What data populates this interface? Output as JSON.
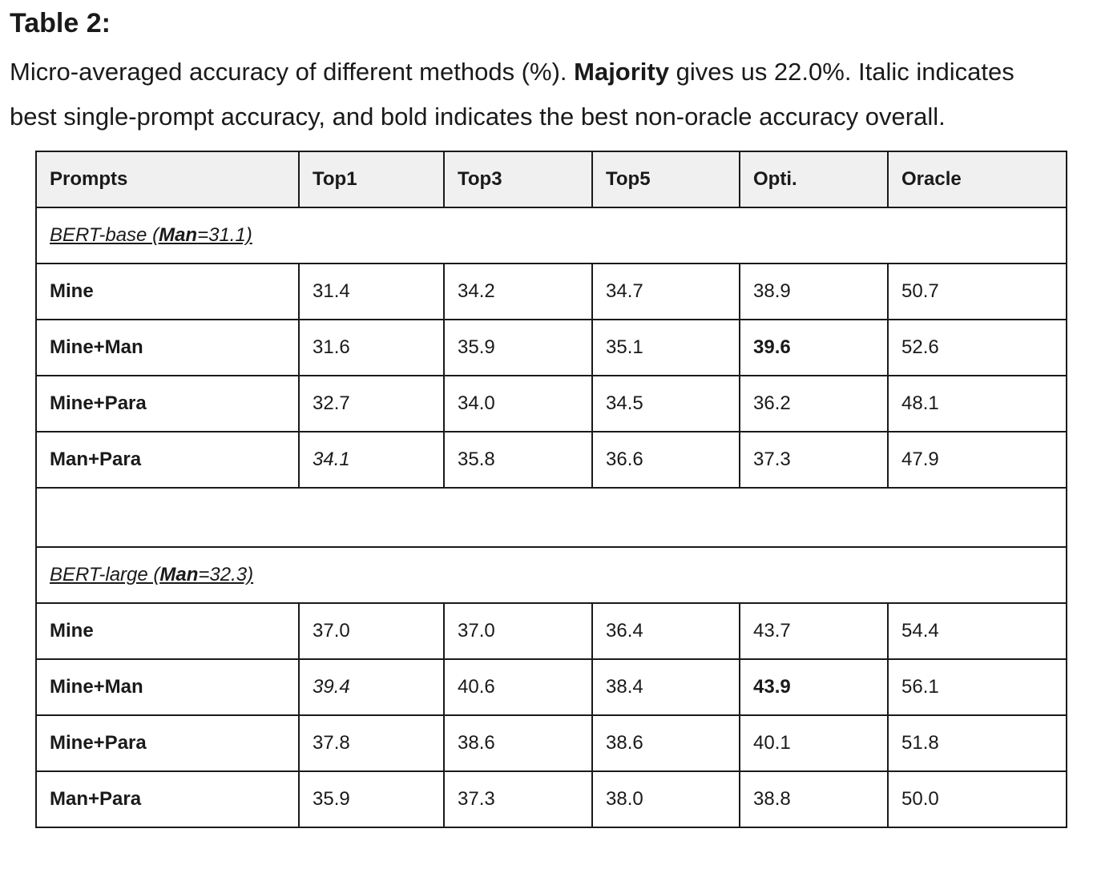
{
  "title": "Table 2:",
  "caption": {
    "part1": "Micro-averaged accuracy of different methods (%). ",
    "majority_label": "Majority",
    "part2": " gives us 22.0%. Italic indicates",
    "line2": "best single-prompt accuracy, and bold indicates the best non-oracle accuracy overall."
  },
  "table": {
    "headers": [
      "Prompts",
      "Top1",
      "Top3",
      "Top5",
      "Opti.",
      "Oracle"
    ],
    "groups": [
      {
        "model": "BERT-base (",
        "man_label": "Man",
        "man_value": "=31.1)",
        "rows": [
          {
            "prompt": "Mine",
            "values": [
              "31.4",
              "34.2",
              "34.7",
              "38.9",
              "50.7"
            ]
          },
          {
            "prompt": "Mine+Man",
            "values": [
              "31.6",
              "35.9",
              "35.1",
              "39.6",
              "52.6"
            ]
          },
          {
            "prompt": "Mine+Para",
            "values": [
              "32.7",
              "34.0",
              "34.5",
              "36.2",
              "48.1"
            ]
          },
          {
            "prompt": "Man+Para",
            "values": [
              "34.1",
              "35.8",
              "36.6",
              "37.3",
              "47.9"
            ]
          }
        ]
      },
      {
        "model": "BERT-large (",
        "man_label": "Man",
        "man_value": "=32.3)",
        "rows": [
          {
            "prompt": "Mine",
            "values": [
              "37.0",
              "37.0",
              "36.4",
              "43.7",
              "54.4"
            ]
          },
          {
            "prompt": "Mine+Man",
            "values": [
              "39.4",
              "40.6",
              "38.4",
              "43.9",
              "56.1"
            ]
          },
          {
            "prompt": "Mine+Para",
            "values": [
              "37.8",
              "38.6",
              "38.6",
              "40.1",
              "51.8"
            ]
          },
          {
            "prompt": "Man+Para",
            "values": [
              "35.9",
              "37.3",
              "38.0",
              "38.8",
              "50.0"
            ]
          }
        ]
      }
    ]
  }
}
